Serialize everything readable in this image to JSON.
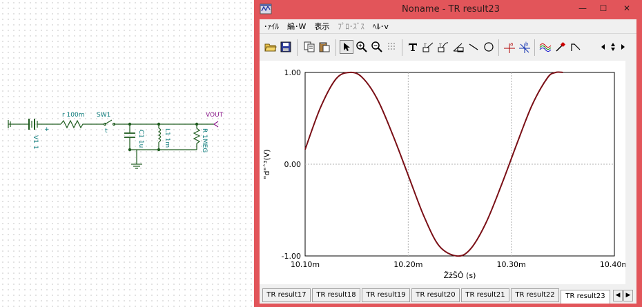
{
  "schematic": {
    "source_label": "V1 1",
    "resistor_label": "r 100m",
    "switch_label": "SW1",
    "capacitor_label": "C1 1u",
    "inductor_label": "L1 1m",
    "load_label": "R 1MEG",
    "output_label": "VOUT",
    "plus_sign": "+",
    "switch_mark": "t"
  },
  "window": {
    "title": "Noname - TR result23",
    "min_glyph": "—",
    "max_glyph": "☐",
    "close_glyph": "✕"
  },
  "menu": [
    "･ｧｲﾙ",
    "編･W",
    "表示",
    "ﾌﾟﾛ･ｽﾞｽ",
    "ﾍﾙ･v"
  ],
  "toolbar": [
    "open-icon",
    "save-icon",
    "copy-icon",
    "paste-icon",
    "pointer-icon",
    "zoom-in-icon",
    "zoom-out-icon",
    "grid-icon",
    "text-icon",
    "label-icon",
    "label-curve-icon",
    "label-axis-icon",
    "line-icon",
    "circle-icon",
    "cursor-a-icon",
    "cursor-b-icon",
    "curves-icon",
    "probe-icon",
    "step-icon"
  ],
  "tabs": [
    "TR result17",
    "TR result18",
    "TR result19",
    "TR result20",
    "TR result21",
    "TR result22",
    "TR result23"
  ],
  "tab_nav": {
    "left": "◀",
    "right": "▶"
  },
  "chart_data": {
    "type": "line",
    "title": "",
    "xlabel": "ŽžŠÔ (s)",
    "ylabel": "\"d\"ˆ³(V)",
    "xlim": [
      0.0101,
      0.0104
    ],
    "ylim": [
      -1.0,
      1.0
    ],
    "x_ticks": [
      "10.10m",
      "10.20m",
      "10.30m",
      "10.40m"
    ],
    "y_ticks": [
      "1.00",
      "0.00",
      "-1.00"
    ],
    "grid": true,
    "series": [
      {
        "color": "#7a0f16",
        "x": [
          0.0101,
          0.010115,
          0.01013,
          0.010143,
          0.010155,
          0.01017,
          0.010185,
          0.0102,
          0.010215,
          0.01023,
          0.010247,
          0.01026,
          0.010275,
          0.01029,
          0.010305,
          0.01032,
          0.010335,
          0.010343,
          0.01035
        ],
        "y": [
          0.16,
          0.62,
          0.93,
          1.0,
          0.95,
          0.71,
          0.32,
          -0.12,
          -0.56,
          -0.89,
          -1.0,
          -0.93,
          -0.65,
          -0.24,
          0.21,
          0.64,
          0.94,
          1.0,
          1.0
        ]
      }
    ]
  }
}
